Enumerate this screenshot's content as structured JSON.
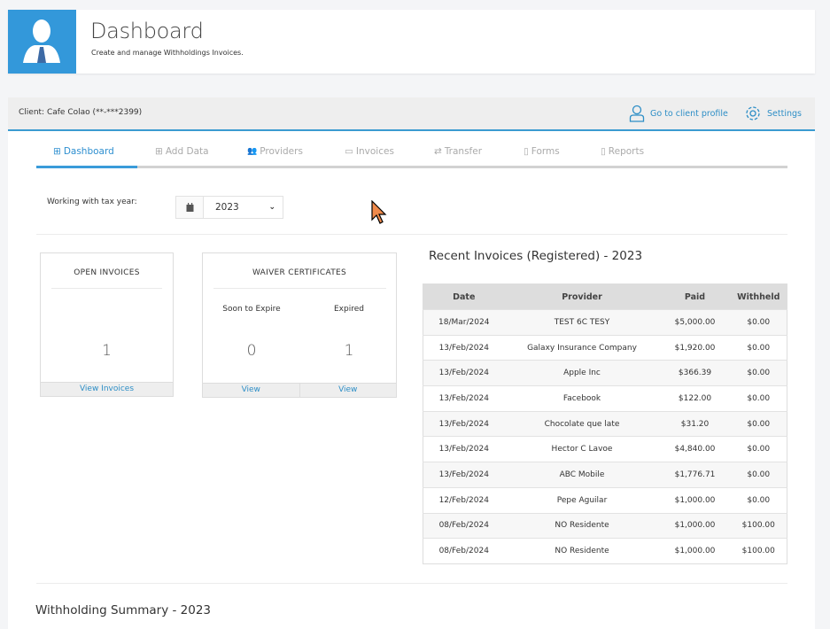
{
  "header": {
    "title": "Dashboard",
    "subtitle": "Create and manage Withholdings Invoices.",
    "avatar_icon": "user-with-tie-icon",
    "brand_color": "#3398da"
  },
  "client_bar": {
    "client_label": "Client: Cafe Colao (**-***2399)",
    "profile_link": "Go to client profile",
    "settings_link": "Settings"
  },
  "tabs": [
    {
      "label": "Dashboard",
      "icon": "grid-icon",
      "active": true
    },
    {
      "label": "Add Data",
      "icon": "plus-square-icon"
    },
    {
      "label": "Providers",
      "icon": "users-icon"
    },
    {
      "label": "Invoices",
      "icon": "invoice-icon"
    },
    {
      "label": "Transfer",
      "icon": "exchange-icon"
    },
    {
      "label": "Forms",
      "icon": "file-icon"
    },
    {
      "label": "Reports",
      "icon": "clipboard-icon"
    }
  ],
  "tax_year": {
    "label": "Working with tax year:",
    "value": "2023"
  },
  "open_invoices": {
    "title": "OPEN INVOICES",
    "count": "1",
    "link": "View Invoices"
  },
  "waiver": {
    "title": "WAIVER CERTIFICATES",
    "soon_label": "Soon to Expire",
    "soon_count": "0",
    "expired_label": "Expired",
    "expired_count": "1",
    "view1": "View",
    "view2": "View"
  },
  "recent": {
    "title": "Recent Invoices (Registered) - 2023",
    "columns": [
      "Date",
      "Provider",
      "Paid",
      "Withheld"
    ],
    "rows": [
      [
        "18/Mar/2024",
        "TEST 6C TESY",
        "$5,000.00",
        "$0.00"
      ],
      [
        "13/Feb/2024",
        "Galaxy Insurance Company",
        "$1,920.00",
        "$0.00"
      ],
      [
        "13/Feb/2024",
        "Apple Inc",
        "$366.39",
        "$0.00"
      ],
      [
        "13/Feb/2024",
        "Facebook",
        "$122.00",
        "$0.00"
      ],
      [
        "13/Feb/2024",
        "Chocolate que late",
        "$31.20",
        "$0.00"
      ],
      [
        "13/Feb/2024",
        "Hector C Lavoe",
        "$4,840.00",
        "$0.00"
      ],
      [
        "13/Feb/2024",
        "ABC Mobile",
        "$1,776.71",
        "$0.00"
      ],
      [
        "12/Feb/2024",
        "Pepe Aguilar",
        "$1,000.00",
        "$0.00"
      ],
      [
        "08/Feb/2024",
        "NO Residente",
        "$1,000.00",
        "$100.00"
      ],
      [
        "08/Feb/2024",
        "NO Residente",
        "$1,000.00",
        "$100.00"
      ]
    ]
  },
  "summary": {
    "title": "Withholding Summary - 2023"
  }
}
